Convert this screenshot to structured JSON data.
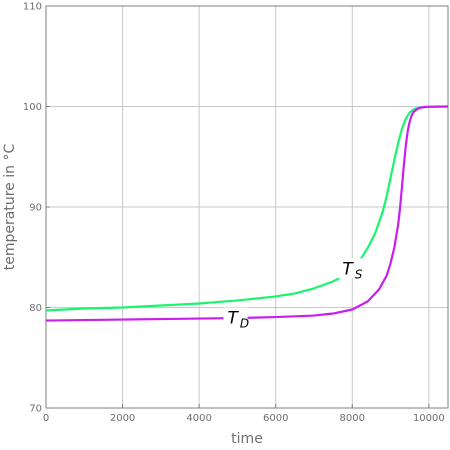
{
  "chart_data": {
    "type": "line",
    "title": "",
    "xlabel": "time",
    "ylabel": "temperature  in  °C",
    "xlim": [
      0,
      10500
    ],
    "ylim": [
      70,
      110
    ],
    "xticks": [
      0,
      2000,
      4000,
      6000,
      8000,
      10000
    ],
    "yticks": [
      70,
      80,
      90,
      100,
      110
    ],
    "grid": true,
    "series": [
      {
        "name": "T_S",
        "label_main": "T",
        "label_sub": "S",
        "label_at": [
          7950,
          83.8
        ],
        "color": "#19f56e",
        "x": [
          0,
          1000,
          2000,
          3000,
          4000,
          5000,
          6000,
          6500,
          7000,
          7500,
          7800,
          8000,
          8200,
          8400,
          8600,
          8800,
          8900,
          9000,
          9100,
          9200,
          9300,
          9400,
          9500,
          9600,
          9700,
          9800,
          9900,
          10000,
          10200,
          10500
        ],
        "y": [
          79.7,
          79.9,
          80.0,
          80.2,
          80.4,
          80.7,
          81.1,
          81.4,
          81.9,
          82.6,
          83.2,
          83.8,
          84.7,
          85.9,
          87.4,
          89.6,
          91.1,
          92.9,
          94.7,
          96.4,
          97.8,
          98.8,
          99.4,
          99.7,
          99.85,
          99.9,
          99.95,
          99.97,
          99.98,
          100.0
        ]
      },
      {
        "name": "T_D",
        "label_main": "T",
        "label_sub": "D",
        "label_at": [
          4950,
          78.9
        ],
        "color": "#c81ef0",
        "x": [
          0,
          1000,
          2000,
          3000,
          4000,
          5000,
          6000,
          7000,
          7500,
          8000,
          8400,
          8700,
          8900,
          9000,
          9100,
          9200,
          9250,
          9300,
          9350,
          9400,
          9450,
          9500,
          9550,
          9600,
          9700,
          9800,
          9900,
          10000,
          10200,
          10500
        ],
        "y": [
          78.7,
          78.75,
          78.8,
          78.85,
          78.9,
          78.95,
          79.05,
          79.2,
          79.4,
          79.8,
          80.6,
          81.8,
          83.2,
          84.4,
          86.0,
          88.3,
          90.0,
          92.1,
          94.3,
          96.2,
          97.6,
          98.5,
          99.1,
          99.45,
          99.75,
          99.9,
          99.95,
          99.97,
          99.99,
          100.0
        ]
      }
    ]
  }
}
